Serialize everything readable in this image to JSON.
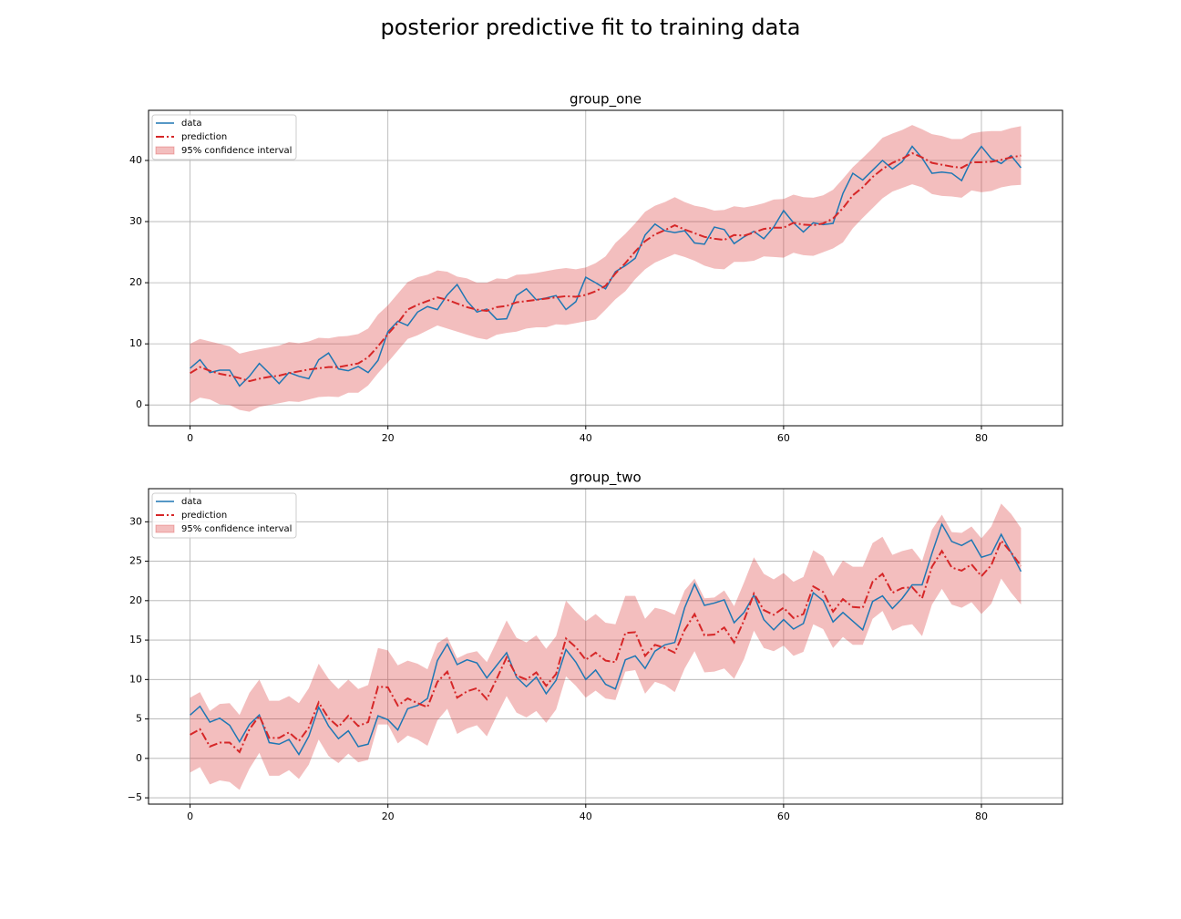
{
  "title": "posterior predictive fit to training data",
  "chart_data": [
    {
      "type": "line",
      "title": "group_one",
      "x": [
        0,
        1,
        2,
        3,
        4,
        5,
        6,
        7,
        8,
        9,
        10,
        11,
        12,
        13,
        14,
        15,
        16,
        17,
        18,
        19,
        20,
        21,
        22,
        23,
        24,
        25,
        26,
        27,
        28,
        29,
        30,
        31,
        32,
        33,
        34,
        35,
        36,
        37,
        38,
        39,
        40,
        41,
        42,
        43,
        44,
        45,
        46,
        47,
        48,
        49,
        50,
        51,
        52,
        53,
        54,
        55,
        56,
        57,
        58,
        59,
        60,
        61,
        62,
        63,
        64,
        65,
        66,
        67,
        68,
        69,
        70,
        71,
        72,
        73,
        74,
        75,
        76,
        77,
        78,
        79,
        80,
        81,
        82,
        83,
        84
      ],
      "xlim": [
        -4.2,
        88.2
      ],
      "xticks": [
        0,
        20,
        40,
        60,
        80
      ],
      "ylim": [
        -3.4,
        48.2
      ],
      "yticks": [
        0,
        10,
        20,
        30,
        40
      ],
      "grid": true,
      "legend": "upper left",
      "series": [
        {
          "name": "data",
          "color": "#1f77b4",
          "style": "solid",
          "values": [
            6,
            7.4,
            5.3,
            5.7,
            5.7,
            3.1,
            4.7,
            6.8,
            5.2,
            3.5,
            5.3,
            4.7,
            4.3,
            7.4,
            8.5,
            5.9,
            5.6,
            6.3,
            5.3,
            7.3,
            12,
            13.7,
            13,
            15.2,
            16.1,
            15.6,
            18,
            19.7,
            17,
            15.2,
            15.7,
            14,
            14.1,
            17.9,
            19,
            17.2,
            17.5,
            17.9,
            15.6,
            16.9,
            20.9,
            20,
            19,
            21.8,
            22.8,
            24,
            27.8,
            29.6,
            28.5,
            28.2,
            28.5,
            26.5,
            26.3,
            29.1,
            28.7,
            26.4,
            27.5,
            28.4,
            27.2,
            29.1,
            31.8,
            29.8,
            28.3,
            29.8,
            29.5,
            29.7,
            34.6,
            37.9,
            36.8,
            38.4,
            40,
            38.6,
            39.8,
            42.3,
            40.4,
            37.9,
            38.1,
            37.9,
            36.7,
            40.1,
            42.3,
            40.3,
            39.5,
            40.8,
            38.8
          ]
        },
        {
          "name": "prediction",
          "color": "#d62728",
          "style": "dashdot",
          "values": [
            5.2,
            6.2,
            5.6,
            5.1,
            4.8,
            4.4,
            3.9,
            4.3,
            4.6,
            4.8,
            5.2,
            5.5,
            5.8,
            6,
            6.2,
            6.2,
            6.5,
            6.8,
            7.8,
            9.6,
            11.6,
            13.4,
            15.6,
            16.4,
            17,
            17.6,
            17.2,
            16.6,
            16,
            15.6,
            15.4,
            16,
            16.2,
            16.8,
            17,
            17.2,
            17.4,
            17.6,
            17.8,
            17.7,
            18,
            18.6,
            19.5,
            21.5,
            23.2,
            25.1,
            26.8,
            27.9,
            28.6,
            29.4,
            28.7,
            28.1,
            27.5,
            27.2,
            27,
            27.8,
            27.7,
            28.2,
            28.8,
            29,
            29,
            29.8,
            29.5,
            29.4,
            29.7,
            30.5,
            32.2,
            34.3,
            35.6,
            37.3,
            38.6,
            39.6,
            40.3,
            41.2,
            40.5,
            39.6,
            39.3,
            39,
            38.8,
            39.7,
            39.7,
            39.8,
            40.1,
            40.5,
            40.8
          ]
        }
      ],
      "band": {
        "name": "95% confidence interval",
        "color": "#d62728",
        "opacity": 0.3,
        "upper": [
          10,
          10.8,
          10.4,
          10,
          9.6,
          8.4,
          8.8,
          9.1,
          9.4,
          9.7,
          10.3,
          10.1,
          10.4,
          11,
          10.9,
          11.2,
          11.3,
          11.6,
          12.5,
          14.8,
          16.3,
          18.2,
          20.1,
          20.9,
          21.3,
          22,
          21.8,
          21,
          20.7,
          20,
          20,
          20.7,
          20.6,
          21.3,
          21.4,
          21.6,
          21.9,
          22.2,
          22.4,
          22.2,
          22.5,
          23.2,
          24.3,
          26.5,
          28,
          29.7,
          31.6,
          32.6,
          33.2,
          34,
          33.2,
          32.6,
          32.3,
          31.8,
          31.9,
          32.5,
          32.3,
          32.6,
          33,
          33.6,
          33.7,
          34.4,
          34,
          33.9,
          34.3,
          35.2,
          37,
          38.9,
          40.4,
          42,
          43.7,
          44.4,
          45,
          45.8,
          45.1,
          44.3,
          44,
          43.5,
          43.5,
          44.4,
          44.7,
          44.8,
          44.8,
          45.3,
          45.6
        ],
        "lower": [
          0.3,
          1.2,
          0.9,
          0.1,
          0,
          -0.8,
          -1.1,
          -0.3,
          0,
          0.3,
          0.6,
          0.5,
          0.9,
          1.3,
          1.4,
          1.3,
          2,
          2,
          3.2,
          5.2,
          7,
          8.9,
          10.8,
          11.4,
          12.2,
          13,
          12.5,
          12,
          11.5,
          11,
          10.7,
          11.5,
          11.8,
          12,
          12.5,
          12.7,
          12.7,
          13.2,
          13.1,
          13.4,
          13.7,
          14,
          15.6,
          17.3,
          18.6,
          20.6,
          22.2,
          23.3,
          24,
          24.7,
          24.2,
          23.6,
          22.8,
          22.3,
          22.2,
          23.4,
          23.4,
          23.6,
          24.3,
          24.2,
          24.1,
          24.9,
          24.5,
          24.4,
          25,
          25.6,
          26.6,
          28.9,
          30.6,
          32.2,
          33.8,
          34.9,
          35.5,
          36.1,
          35.6,
          34.5,
          34.2,
          34.1,
          33.9,
          35.1,
          34.8,
          35,
          35.6,
          35.9,
          36
        ]
      }
    },
    {
      "type": "line",
      "title": "group_two",
      "x": [
        0,
        1,
        2,
        3,
        4,
        5,
        6,
        7,
        8,
        9,
        10,
        11,
        12,
        13,
        14,
        15,
        16,
        17,
        18,
        19,
        20,
        21,
        22,
        23,
        24,
        25,
        26,
        27,
        28,
        29,
        30,
        31,
        32,
        33,
        34,
        35,
        36,
        37,
        38,
        39,
        40,
        41,
        42,
        43,
        44,
        45,
        46,
        47,
        48,
        49,
        50,
        51,
        52,
        53,
        54,
        55,
        56,
        57,
        58,
        59,
        60,
        61,
        62,
        63,
        64,
        65,
        66,
        67,
        68,
        69,
        70,
        71,
        72,
        73,
        74,
        75,
        76,
        77,
        78,
        79,
        80,
        81,
        82,
        83,
        84
      ],
      "xlim": [
        -4.2,
        88.2
      ],
      "xticks": [
        0,
        20,
        40,
        60,
        80
      ],
      "ylim": [
        -5.8,
        34.2
      ],
      "yticks": [
        {
          "value": -5,
          "label": "−5"
        },
        0,
        5,
        10,
        15,
        20,
        25,
        30
      ],
      "grid": true,
      "legend": "upper left",
      "series": [
        {
          "name": "data",
          "color": "#1f77b4",
          "style": "solid",
          "values": [
            5.5,
            6.6,
            4.6,
            5.1,
            4.2,
            2.1,
            4.3,
            5.5,
            2,
            1.8,
            2.4,
            0.5,
            2.8,
            6.5,
            4.1,
            2.5,
            3.5,
            1.5,
            1.8,
            5.4,
            4.9,
            3.6,
            6.3,
            6.7,
            7.6,
            12.4,
            14.5,
            11.9,
            12.5,
            12.1,
            10.2,
            11.8,
            13.4,
            10.3,
            9.1,
            10.3,
            8.2,
            9.9,
            13.8,
            12.2,
            10,
            11.2,
            9.4,
            8.8,
            12.5,
            13,
            11.4,
            13.6,
            14.4,
            14.7,
            19.1,
            22.1,
            19.4,
            19.7,
            20.1,
            17.2,
            18.5,
            20.7,
            17.6,
            16.3,
            17.6,
            16.4,
            17.1,
            21,
            20,
            17.3,
            18.5,
            17.4,
            16.3,
            19.9,
            20.6,
            19,
            20.3,
            22,
            22,
            26,
            29.7,
            27.5,
            27,
            27.7,
            25.5,
            25.9,
            28.4,
            26.1,
            23.7
          ]
        },
        {
          "name": "prediction",
          "color": "#d62728",
          "style": "dashdot",
          "values": [
            3,
            3.7,
            1.5,
            2,
            2,
            0.8,
            3.7,
            5.4,
            2.6,
            2.6,
            3.3,
            2.2,
            3.9,
            7.1,
            5.1,
            4,
            5.4,
            4.1,
            4.6,
            9.1,
            9,
            6.7,
            7.6,
            7,
            6.5,
            9.7,
            11,
            7.7,
            8.5,
            8.9,
            7.5,
            10.1,
            12.8,
            10.5,
            10,
            10.9,
            9.2,
            10.7,
            15.2,
            14.1,
            12.5,
            13.4,
            12.4,
            12.2,
            15.9,
            16,
            13,
            14.4,
            14,
            13.4,
            16.3,
            18.3,
            15.6,
            15.7,
            16.6,
            14.7,
            17.5,
            20.9,
            18.8,
            18.2,
            19.1,
            17.8,
            18.3,
            21.8,
            21.1,
            18.6,
            20.2,
            19.2,
            19.1,
            22.4,
            23.4,
            21,
            21.6,
            21.7,
            20.3,
            24.3,
            26.3,
            24.2,
            23.8,
            24.6,
            23.1,
            24.5,
            27.6,
            26.1,
            24.4
          ]
        }
      ],
      "band": {
        "name": "95% confidence interval",
        "color": "#d62728",
        "opacity": 0.3,
        "upper": [
          7.7,
          8.4,
          6,
          6.9,
          7,
          5.5,
          8.3,
          10,
          7.3,
          7.3,
          7.9,
          7,
          8.9,
          12,
          10.1,
          8.8,
          10,
          8.8,
          9.3,
          14,
          13.7,
          11.8,
          12.4,
          12,
          11.3,
          14.6,
          15.4,
          12.7,
          13.3,
          13.6,
          12.2,
          14.8,
          17.5,
          15.3,
          14.7,
          15.6,
          13.9,
          15.5,
          20,
          18.6,
          17.4,
          18.3,
          17.2,
          17,
          20.6,
          20.6,
          17.7,
          19.1,
          18.8,
          18.2,
          21.3,
          22.8,
          20.3,
          20.4,
          21.3,
          19.3,
          22.3,
          25.5,
          23.4,
          22.7,
          23.5,
          22.4,
          23,
          26.4,
          25.6,
          23.1,
          25.1,
          24.3,
          24.3,
          27.3,
          28.1,
          25.8,
          26.3,
          26.6,
          25,
          29,
          30.9,
          28.7,
          28.6,
          29.4,
          27.9,
          29.4,
          32.3,
          31,
          29.2
        ],
        "lower": [
          -1.8,
          -1.1,
          -3.3,
          -2.8,
          -3,
          -4,
          -1.3,
          0.7,
          -2.2,
          -2.2,
          -1.5,
          -2.6,
          -0.8,
          2.4,
          0.3,
          -0.6,
          0.6,
          -0.5,
          -0.2,
          4.3,
          4.3,
          1.9,
          2.9,
          2.4,
          1.6,
          4.8,
          6.3,
          3.1,
          3.8,
          4.2,
          2.8,
          5.4,
          7.9,
          5.8,
          5.2,
          6,
          4.5,
          6.2,
          10.4,
          9.2,
          7.7,
          8.6,
          7.6,
          7.4,
          11,
          11.2,
          8.2,
          9.7,
          9.3,
          8.4,
          11.4,
          13.6,
          10.9,
          11,
          11.4,
          10.1,
          12.6,
          16.2,
          14,
          13.6,
          14.3,
          13,
          13.5,
          17,
          16.4,
          14,
          15.4,
          14.4,
          14.4,
          17.7,
          18.7,
          16.2,
          16.8,
          17,
          15.5,
          19.5,
          21.5,
          19.5,
          19.1,
          19.8,
          18.3,
          19.6,
          22.8,
          21,
          19.5
        ]
      }
    }
  ]
}
